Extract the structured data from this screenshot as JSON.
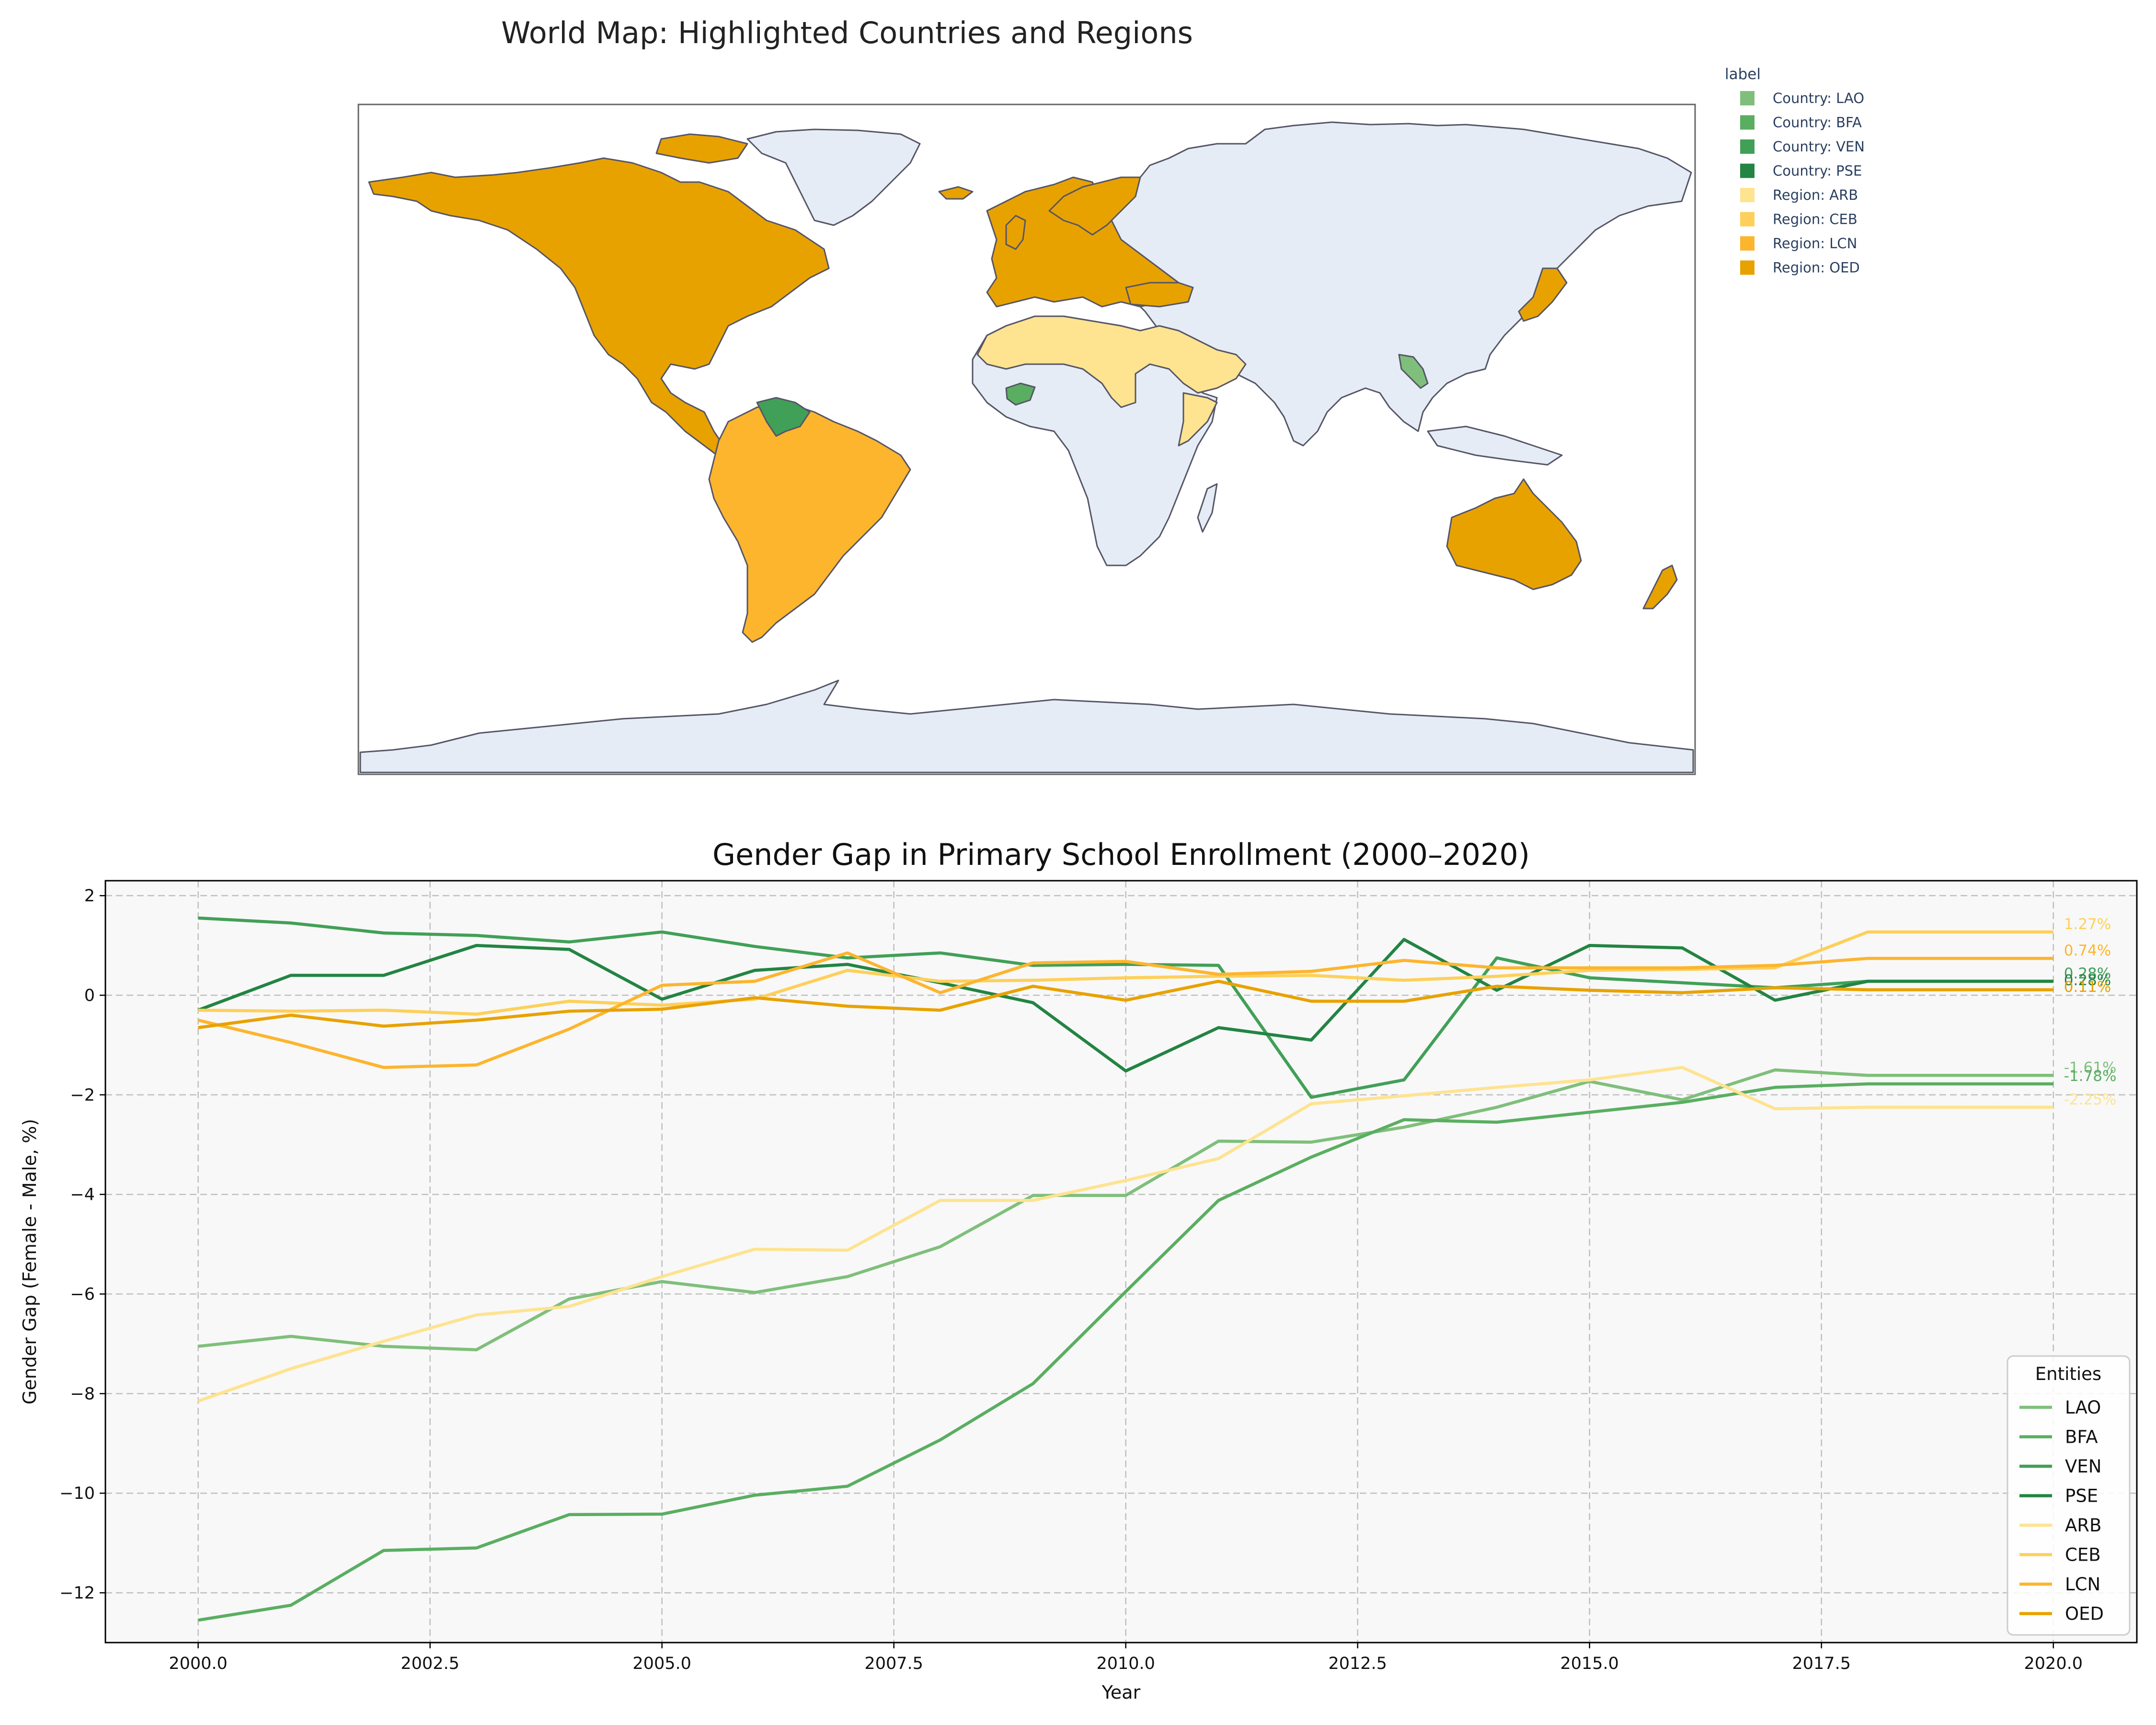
{
  "map_panel": {
    "title": "World Map: Highlighted Countries and Regions",
    "legend_title": "label",
    "legend_items": [
      {
        "label": "Country: LAO",
        "color": "#7fbf7b"
      },
      {
        "label": "Country: BFA",
        "color": "#5aae61"
      },
      {
        "label": "Country: VEN",
        "color": "#41a057"
      },
      {
        "label": "Country: PSE",
        "color": "#238443"
      },
      {
        "label": "Region: ARB",
        "color": "#fee391"
      },
      {
        "label": "Region: CEB",
        "color": "#fed05a"
      },
      {
        "label": "Region: LCN",
        "color": "#fdb52e"
      },
      {
        "label": "Region: OED",
        "color": "#e8a200"
      }
    ],
    "colors": {
      "land": "#e5ecf6",
      "border": "#555566",
      "frame": "#666666"
    }
  },
  "chart_data": {
    "type": "line",
    "title": "Gender Gap in Primary School Enrollment (2000–2020)",
    "xlabel": "Year",
    "ylabel": "Gender Gap (Female - Male, %)",
    "xlim": [
      1999,
      2020.9
    ],
    "ylim": [
      -13.0,
      2.3
    ],
    "xticks": [
      2000.0,
      2002.5,
      2005.0,
      2007.5,
      2010.0,
      2012.5,
      2015.0,
      2017.5,
      2020.0
    ],
    "xtick_labels": [
      "2000.0",
      "2002.5",
      "2005.0",
      "2007.5",
      "2010.0",
      "2012.5",
      "2015.0",
      "2017.5",
      "2020.0"
    ],
    "yticks": [
      2,
      0,
      -2,
      -4,
      -6,
      -8,
      -10,
      -12
    ],
    "ytick_labels": [
      "2",
      "0",
      "−2",
      "−4",
      "−6",
      "−8",
      "−10",
      "−12"
    ],
    "grid": true,
    "legend_title": "Entities",
    "legend_position": "lower-right",
    "x": [
      2000,
      2001,
      2002,
      2003,
      2004,
      2005,
      2006,
      2007,
      2008,
      2009,
      2010,
      2011,
      2012,
      2013,
      2014,
      2015,
      2016,
      2017,
      2018,
      2019,
      2020
    ],
    "series": [
      {
        "name": "LAO",
        "color": "#7fbf7b",
        "end_label": "-1.61%",
        "values": [
          -7.05,
          -6.85,
          -7.05,
          -7.12,
          -6.1,
          -5.75,
          -5.97,
          -5.65,
          -5.05,
          -4.02,
          -4.02,
          -2.93,
          -2.95,
          -2.65,
          -2.25,
          -1.73,
          -2.1,
          -1.5,
          -1.61,
          -1.61,
          -1.61
        ]
      },
      {
        "name": "BFA",
        "color": "#5aae61",
        "end_label": "-1.78%",
        "values": [
          -12.55,
          -12.25,
          -11.15,
          -11.1,
          -10.43,
          -10.42,
          -10.04,
          -9.86,
          -8.93,
          -7.8,
          -5.95,
          -4.12,
          -3.25,
          -2.5,
          -2.55,
          -2.35,
          -2.15,
          -1.85,
          -1.78,
          -1.78,
          -1.78
        ]
      },
      {
        "name": "VEN",
        "color": "#41a057",
        "end_label": "0.28%",
        "values": [
          1.55,
          1.45,
          1.25,
          1.2,
          1.07,
          1.27,
          0.98,
          0.75,
          0.85,
          0.6,
          0.62,
          0.6,
          -2.05,
          -1.7,
          0.75,
          0.35,
          0.25,
          0.15,
          0.28,
          0.28,
          0.28
        ]
      },
      {
        "name": "PSE",
        "color": "#238443",
        "end_label": "0.28%",
        "values": [
          -0.3,
          0.4,
          0.4,
          1.0,
          0.92,
          -0.08,
          0.5,
          0.62,
          0.25,
          -0.15,
          -1.52,
          -0.65,
          -0.9,
          1.12,
          0.1,
          1.0,
          0.95,
          -0.1,
          0.28,
          0.28,
          0.28
        ]
      },
      {
        "name": "ARB",
        "color": "#fee391",
        "end_label": "-2.25%",
        "values": [
          -8.15,
          -7.5,
          -6.95,
          -6.42,
          -6.25,
          -5.65,
          -5.1,
          -5.12,
          -4.12,
          -4.12,
          -3.72,
          -3.28,
          -2.18,
          -2.02,
          -1.85,
          -1.7,
          -1.45,
          -2.28,
          -2.25,
          -2.25,
          -2.25
        ]
      },
      {
        "name": "CEB",
        "color": "#fed05a",
        "end_label": "1.27%",
        "values": [
          -0.3,
          -0.32,
          -0.3,
          -0.38,
          -0.12,
          -0.2,
          -0.08,
          0.5,
          0.28,
          0.3,
          0.35,
          0.38,
          0.4,
          0.3,
          0.38,
          0.5,
          0.52,
          0.55,
          1.27,
          1.27,
          1.27
        ]
      },
      {
        "name": "LCN",
        "color": "#fdb52e",
        "end_label": "0.74%",
        "values": [
          -0.5,
          -0.95,
          -1.45,
          -1.4,
          -0.68,
          0.2,
          0.28,
          0.85,
          0.05,
          0.65,
          0.68,
          0.42,
          0.48,
          0.7,
          0.55,
          0.55,
          0.55,
          0.6,
          0.74,
          0.74,
          0.74
        ]
      },
      {
        "name": "OED",
        "color": "#e8a200",
        "end_label": "0.11%",
        "values": [
          -0.65,
          -0.4,
          -0.62,
          -0.5,
          -0.32,
          -0.28,
          -0.05,
          -0.22,
          -0.3,
          0.18,
          -0.1,
          0.28,
          -0.12,
          -0.12,
          0.18,
          0.1,
          0.05,
          0.15,
          0.11,
          0.11,
          0.11
        ]
      }
    ]
  }
}
